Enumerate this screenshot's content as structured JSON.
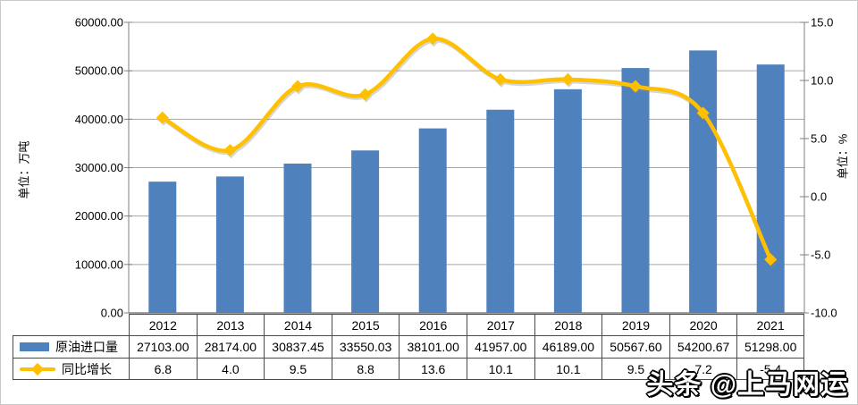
{
  "watermark": {
    "text": "头条 @上马网运"
  },
  "chart_data": {
    "type": "combo-bar-line",
    "title": "",
    "categories": [
      "2012",
      "2013",
      "2014",
      "2015",
      "2016",
      "2017",
      "2018",
      "2019",
      "2020",
      "2021"
    ],
    "series": [
      {
        "name": "原油进口量",
        "type": "bar",
        "color": "#4F81BD",
        "values": [
          27103.0,
          28174.0,
          30837.45,
          33550.03,
          38101.0,
          41957.0,
          46189.0,
          50567.6,
          54200.67,
          51298.0
        ],
        "value_labels": [
          "27103.00",
          "28174.00",
          "30837.45",
          "33550.03",
          "38101.00",
          "41957.00",
          "46189.00",
          "50567.60",
          "54200.67",
          "51298.00"
        ]
      },
      {
        "name": "同比增长",
        "type": "line",
        "color": "#FFC000",
        "values": [
          6.8,
          4.0,
          9.5,
          8.8,
          13.6,
          10.1,
          10.1,
          9.5,
          7.2,
          -5.4
        ],
        "value_labels": [
          "6.8",
          "4.0",
          "9.5",
          "8.8",
          "13.6",
          "10.1",
          "10.1",
          "9.5",
          "7.2",
          "-5.4"
        ]
      }
    ],
    "left_axis": {
      "title": "单位：万吨",
      "min": 0,
      "max": 60000,
      "step": 10000,
      "tick_labels": [
        "60000.00",
        "50000.00",
        "40000.00",
        "30000.00",
        "20000.00",
        "10000.00",
        "0.00"
      ]
    },
    "right_axis": {
      "title": "单位：%",
      "min": -10,
      "max": 15,
      "step": 5,
      "tick_labels": [
        "15.0",
        "10.0",
        "5.0",
        "0.0",
        "-5.0",
        "-10.0"
      ]
    },
    "grid": true,
    "legend_position": "data-table-left",
    "line_smoothed": true,
    "colors": {
      "gridline": "#A6A6A6",
      "axis_line": "#7F7F7F",
      "table_border": "#4A4A4A",
      "text": "#000000"
    }
  }
}
